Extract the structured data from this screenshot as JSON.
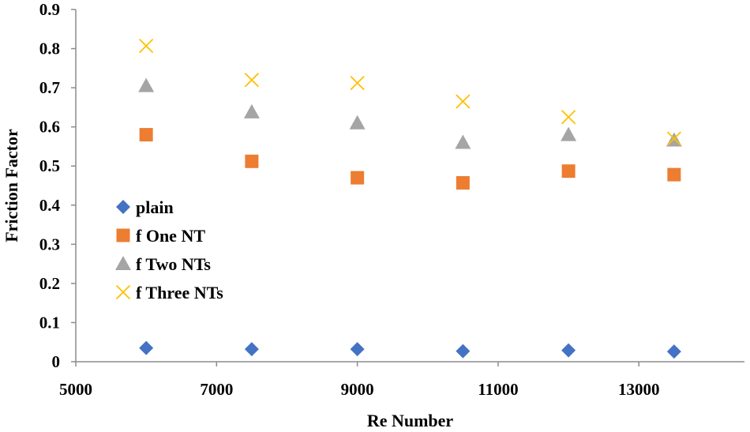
{
  "chart_data": {
    "type": "scatter",
    "title": "",
    "xlabel": "Re Number",
    "ylabel": "Friction Factor",
    "xlim": [
      5000,
      14500
    ],
    "ylim": [
      0,
      0.9
    ],
    "xticks": [
      5000,
      7000,
      9000,
      11000,
      13000
    ],
    "yticks": [
      0,
      0.1,
      0.2,
      0.3,
      0.4,
      0.5,
      0.6,
      0.7,
      0.8,
      0.9
    ],
    "grid": false,
    "legend_position": "left-middle",
    "series": [
      {
        "name": "plain",
        "marker": "diamond",
        "color": "#4472C4",
        "x": [
          6000,
          7500,
          9000,
          10500,
          12000,
          13500
        ],
        "y": [
          0.035,
          0.032,
          0.032,
          0.027,
          0.029,
          0.026
        ]
      },
      {
        "name": "f One NT",
        "marker": "square",
        "color": "#ED7D31",
        "x": [
          6000,
          7500,
          9000,
          10500,
          12000,
          13500
        ],
        "y": [
          0.58,
          0.512,
          0.47,
          0.457,
          0.487,
          0.478
        ]
      },
      {
        "name": "f Two NTs",
        "marker": "triangle",
        "color": "#A5A5A5",
        "x": [
          6000,
          7500,
          9000,
          10500,
          12000,
          13500
        ],
        "y": [
          0.705,
          0.638,
          0.61,
          0.56,
          0.58,
          0.566
        ]
      },
      {
        "name": "f Three NTs",
        "marker": "x",
        "color": "#FFC000",
        "x": [
          6000,
          7500,
          9000,
          10500,
          12000,
          13500
        ],
        "y": [
          0.807,
          0.72,
          0.712,
          0.665,
          0.625,
          0.57
        ]
      }
    ]
  }
}
